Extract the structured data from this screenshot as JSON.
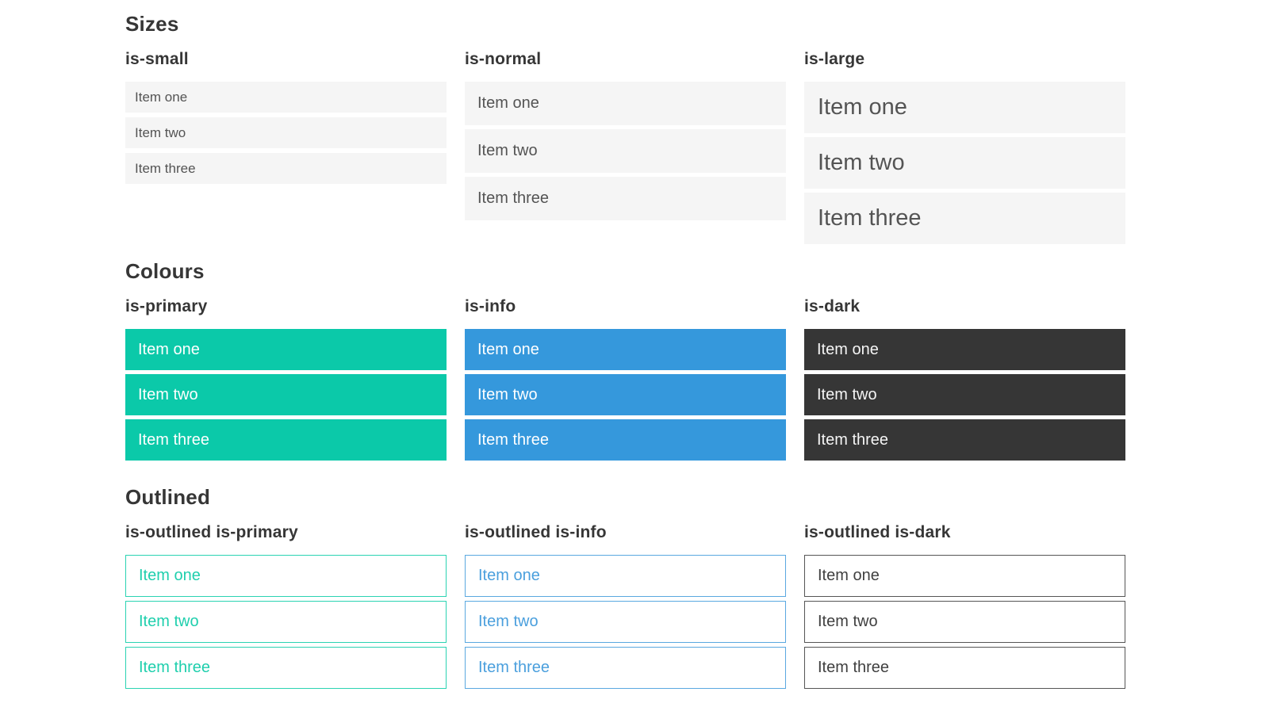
{
  "sections": [
    {
      "title": "Sizes",
      "groups": [
        {
          "label": "is-small",
          "items": [
            "Item one",
            "Item two",
            "Item three"
          ]
        },
        {
          "label": "is-normal",
          "items": [
            "Item one",
            "Item two",
            "Item three"
          ]
        },
        {
          "label": "is-large",
          "items": [
            "Item one",
            "Item two",
            "Item three"
          ]
        }
      ]
    },
    {
      "title": "Colours",
      "groups": [
        {
          "label": "is-primary",
          "items": [
            "Item one",
            "Item two",
            "Item three"
          ]
        },
        {
          "label": "is-info",
          "items": [
            "Item one",
            "Item two",
            "Item three"
          ]
        },
        {
          "label": "is-dark",
          "items": [
            "Item one",
            "Item two",
            "Item three"
          ]
        }
      ]
    },
    {
      "title": "Outlined",
      "groups": [
        {
          "label": "is-outlined is-primary",
          "items": [
            "Item one",
            "Item two",
            "Item three"
          ]
        },
        {
          "label": "is-outlined is-info",
          "items": [
            "Item one",
            "Item two",
            "Item three"
          ]
        },
        {
          "label": "is-outlined is-dark",
          "items": [
            "Item one",
            "Item two",
            "Item three"
          ]
        }
      ]
    }
  ],
  "colors": {
    "primary": "#0bc9a9",
    "info": "#3598dc",
    "dark": "#363636",
    "item_background": "#f5f5f5",
    "heading_text": "#363636",
    "item_text": "#545454",
    "text_on_dark": "#f5f5f5",
    "text_on_colour": "#ffffff"
  }
}
